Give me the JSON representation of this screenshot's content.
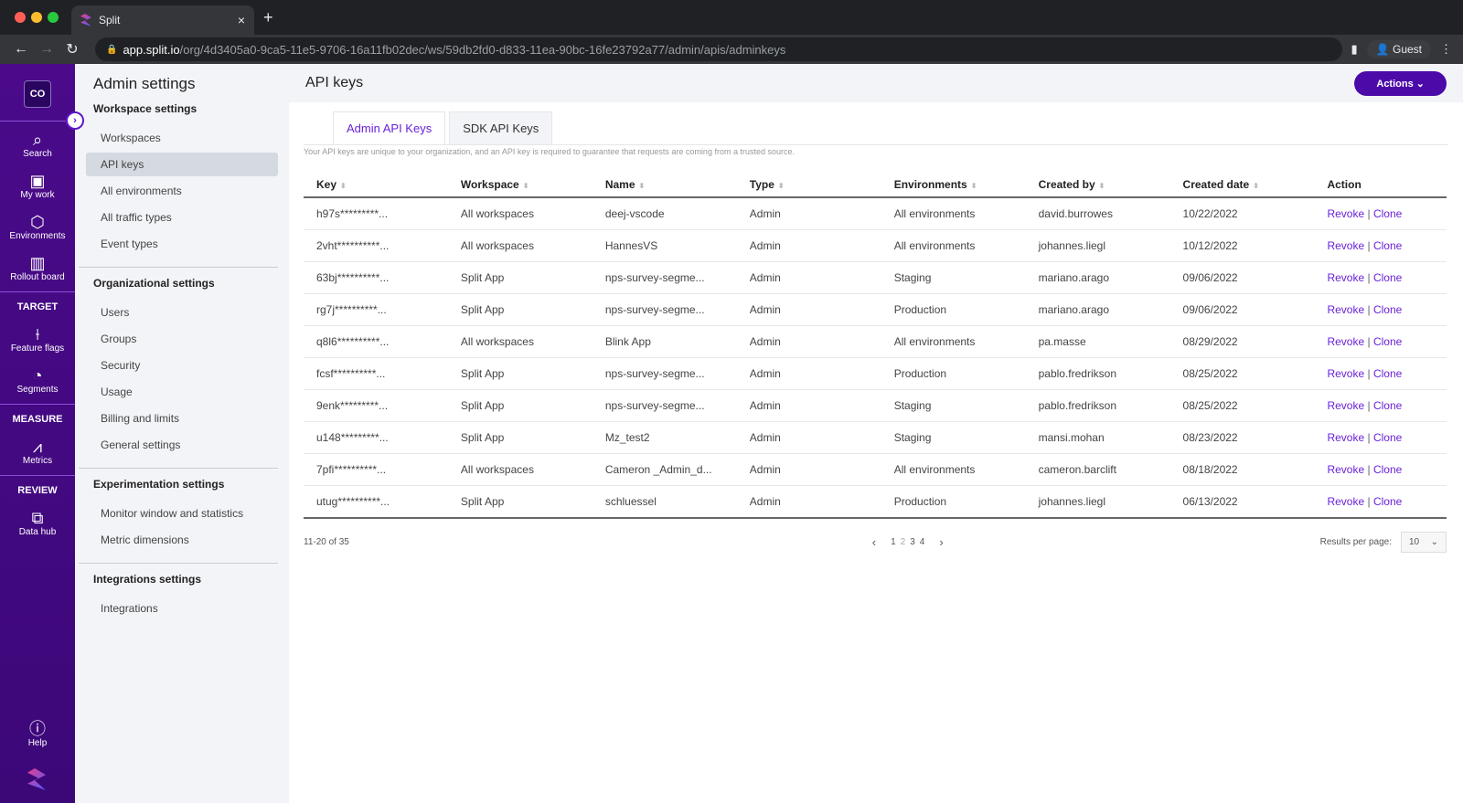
{
  "browser": {
    "tab_title": "Split",
    "url_host": "app.split.io",
    "url_path": "/org/4d3405a0-9ca5-11e5-9706-16a11fb02dec/ws/59db2fd0-d833-11ea-90bc-16fe23792a77/admin/apis/adminkeys",
    "profile": "Guest"
  },
  "rail": {
    "avatar": "CO",
    "items": [
      {
        "label": "Search",
        "icon": "search-icon"
      },
      {
        "label": "My work",
        "icon": "user-icon"
      },
      {
        "label": "Environments",
        "icon": "cube-icon"
      },
      {
        "label": "Rollout board",
        "icon": "board-icon"
      }
    ],
    "target": {
      "heading": "TARGET",
      "items": [
        {
          "label": "Feature flags"
        },
        {
          "label": "Segments"
        }
      ]
    },
    "measure": {
      "heading": "MEASURE",
      "items": [
        {
          "label": "Metrics"
        }
      ]
    },
    "review": {
      "heading": "REVIEW",
      "items": [
        {
          "label": "Data hub"
        }
      ]
    },
    "help": "Help"
  },
  "admin": {
    "title": "Admin settings",
    "sections": [
      {
        "title": "Workspace settings",
        "items": [
          "Workspaces",
          "API keys",
          "All environments",
          "All traffic types",
          "Event types"
        ]
      },
      {
        "title": "Organizational settings",
        "items": [
          "Users",
          "Groups",
          "Security",
          "Usage",
          "Billing and limits",
          "General settings"
        ]
      },
      {
        "title": "Experimentation settings",
        "items": [
          "Monitor window and statistics",
          "Metric dimensions"
        ]
      },
      {
        "title": "Integrations settings",
        "items": [
          "Integrations"
        ]
      }
    ]
  },
  "main": {
    "title": "API keys",
    "actions": "Actions",
    "tabs": [
      "Admin API Keys",
      "SDK API Keys"
    ],
    "description": "Your API keys are unique to your organization, and an API key is required to guarantee that requests are coming from a trusted source.",
    "columns": [
      "Key",
      "Workspace",
      "Name",
      "Type",
      "Environments",
      "Created by",
      "Created date",
      "Action"
    ],
    "rows": [
      [
        "h97s*********...",
        "All workspaces",
        "deej-vscode",
        "Admin",
        "All environments",
        "david.burrowes",
        "10/22/2022"
      ],
      [
        "2vht**********...",
        "All workspaces",
        "HannesVS",
        "Admin",
        "All environments",
        "johannes.liegl",
        "10/12/2022"
      ],
      [
        "63bj**********...",
        "Split App",
        "nps-survey-segme...",
        "Admin",
        "Staging",
        "mariano.arago",
        "09/06/2022"
      ],
      [
        "rg7j**********...",
        "Split App",
        "nps-survey-segme...",
        "Admin",
        "Production",
        "mariano.arago",
        "09/06/2022"
      ],
      [
        "q8l6**********...",
        "All workspaces",
        "Blink App",
        "Admin",
        "All environments",
        "pa.masse",
        "08/29/2022"
      ],
      [
        "fcsf**********...",
        "Split App",
        "nps-survey-segme...",
        "Admin",
        "Production",
        "pablo.fredrikson",
        "08/25/2022"
      ],
      [
        "9enk*********...",
        "Split App",
        "nps-survey-segme...",
        "Admin",
        "Staging",
        "pablo.fredrikson",
        "08/25/2022"
      ],
      [
        "u148*********...",
        "Split App",
        "Mz_test2",
        "Admin",
        "Staging",
        "mansi.mohan",
        "08/23/2022"
      ],
      [
        "7pfi**********...",
        "All workspaces",
        "Cameron _Admin_d...",
        "Admin",
        "All environments",
        "cameron.barclift",
        "08/18/2022"
      ],
      [
        "utug**********...",
        "Split App",
        "schluessel",
        "Admin",
        "Production",
        "johannes.liegl",
        "06/13/2022"
      ]
    ],
    "revoke": "Revoke",
    "clone": "Clone",
    "range": "11-20 of 35",
    "pages": [
      "1",
      "2",
      "3",
      "4"
    ],
    "current_page": "2",
    "rpp_label": "Results per page:",
    "rpp_value": "10"
  },
  "colors": {
    "accent": "#6a22d9",
    "rail": "#4a0a8a",
    "button": "#4c0aa8"
  }
}
